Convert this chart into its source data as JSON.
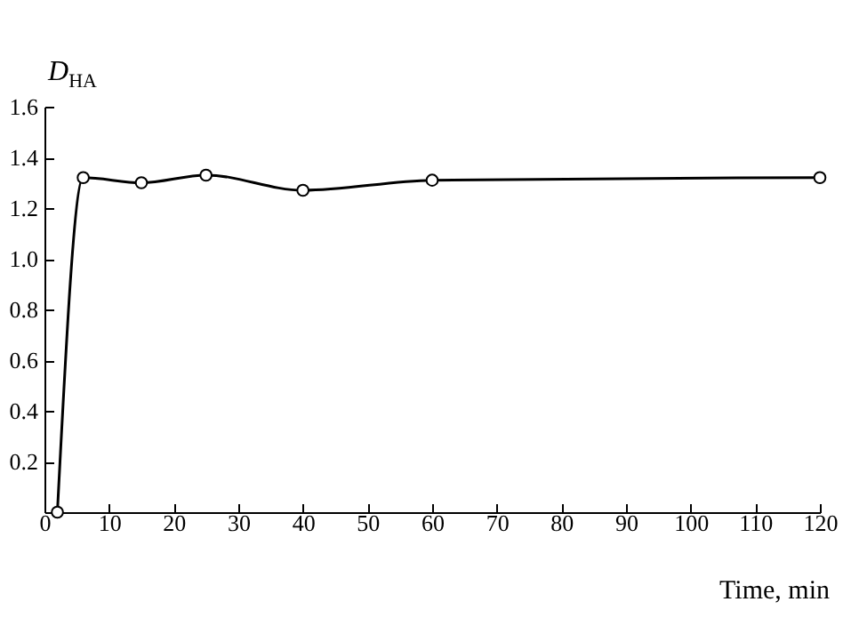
{
  "chart_data": {
    "type": "line",
    "xlabel": "Time, min",
    "ylabel": "D$_{HA}$",
    "x": [
      2,
      6,
      15,
      25,
      40,
      60,
      120
    ],
    "series": [
      {
        "color": "#000000",
        "values": [
          0,
          1.32,
          1.3,
          1.33,
          1.27,
          1.31,
          1.32
        ]
      }
    ],
    "xlim": [
      0,
      120
    ],
    "xticks": [
      0,
      10,
      20,
      30,
      40,
      50,
      60,
      70,
      80,
      90,
      100,
      110,
      120
    ],
    "ylim": [
      0,
      1.6
    ],
    "yticks": [
      {
        "value": 0,
        "label": null
      },
      0.2,
      0.4,
      0.6,
      0.8,
      {
        "value": 1,
        "label": "1.0"
      },
      1.2,
      1.4,
      1.6
    ],
    "grid": false,
    "marker": "circle",
    "line_style": "solid"
  }
}
